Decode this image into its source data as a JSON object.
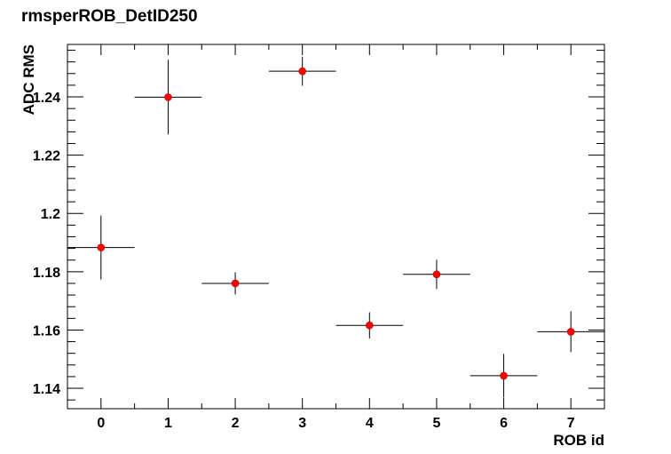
{
  "chart_data": {
    "type": "scatter",
    "title": "rmsperROB_DetID250",
    "xlabel": "ROB id",
    "ylabel": "ADC RMS",
    "xlim": [
      -0.5,
      7.5
    ],
    "ylim": [
      1.133,
      1.258
    ],
    "x_ticks": [
      0,
      1,
      2,
      3,
      4,
      5,
      6,
      7
    ],
    "x_tick_labels": [
      "0",
      "1",
      "2",
      "3",
      "4",
      "5",
      "6",
      "7"
    ],
    "y_ticks": [
      1.14,
      1.16,
      1.18,
      1.2,
      1.22,
      1.24
    ],
    "y_tick_labels": [
      "1.14",
      "1.16",
      "1.18",
      "1.2",
      "1.22",
      "1.24"
    ],
    "x_error": 0.5,
    "points": [
      {
        "x": 0,
        "y": 1.1883,
        "yerr": 0.011
      },
      {
        "x": 1,
        "y": 1.2399,
        "yerr": 0.0128
      },
      {
        "x": 2,
        "y": 1.176,
        "yerr": 0.0038
      },
      {
        "x": 3,
        "y": 1.2488,
        "yerr": 0.005
      },
      {
        "x": 4,
        "y": 1.1616,
        "yerr": 0.0045
      },
      {
        "x": 5,
        "y": 1.1791,
        "yerr": 0.005
      },
      {
        "x": 6,
        "y": 1.1443,
        "yerr": 0.0075
      },
      {
        "x": 7,
        "y": 1.1594,
        "yerr": 0.007
      }
    ],
    "marker_color": "#ff0000",
    "grid": false,
    "legend": false
  }
}
